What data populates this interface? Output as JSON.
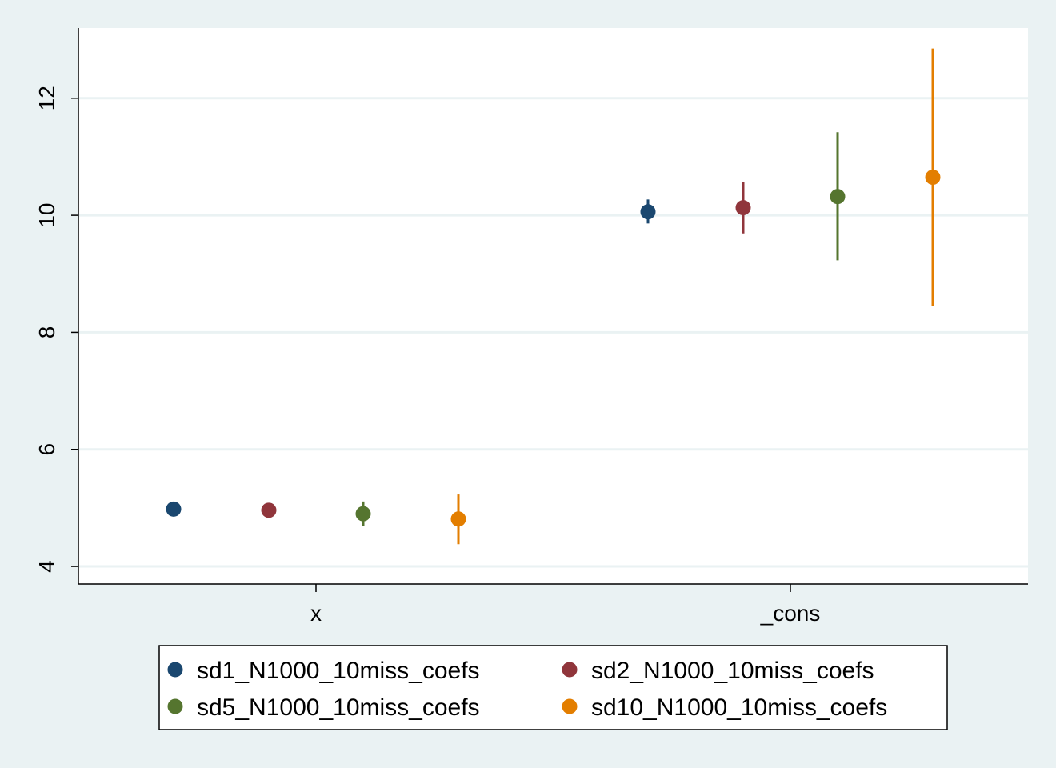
{
  "chart_data": {
    "type": "scatter",
    "categories": [
      "x",
      "_cons"
    ],
    "ylim": [
      3.7,
      13.2
    ],
    "yticks": [
      4,
      6,
      8,
      10,
      12
    ],
    "grid": true,
    "legend_position": "bottom",
    "series": [
      {
        "name": "sd1_N1000_10miss_coefs",
        "color": "#1a476f",
        "points": [
          {
            "category": "x",
            "value": 4.98,
            "ci": [
              4.95,
              5.01
            ]
          },
          {
            "category": "_cons",
            "value": 10.06,
            "ci": [
              9.86,
              10.27
            ]
          }
        ]
      },
      {
        "name": "sd2_N1000_10miss_coefs",
        "color": "#90353b",
        "points": [
          {
            "category": "x",
            "value": 4.96,
            "ci": [
              4.91,
              5.01
            ]
          },
          {
            "category": "_cons",
            "value": 10.13,
            "ci": [
              9.69,
              10.57
            ]
          }
        ]
      },
      {
        "name": "sd5_N1000_10miss_coefs",
        "color": "#55752f",
        "points": [
          {
            "category": "x",
            "value": 4.9,
            "ci": [
              4.69,
              5.11
            ]
          },
          {
            "category": "_cons",
            "value": 10.32,
            "ci": [
              9.23,
              11.42
            ]
          }
        ]
      },
      {
        "name": "sd10_N1000_10miss_coefs",
        "color": "#e37e00",
        "points": [
          {
            "category": "x",
            "value": 4.81,
            "ci": [
              4.38,
              5.23
            ]
          },
          {
            "category": "_cons",
            "value": 10.65,
            "ci": [
              8.45,
              12.85
            ]
          }
        ]
      }
    ]
  }
}
